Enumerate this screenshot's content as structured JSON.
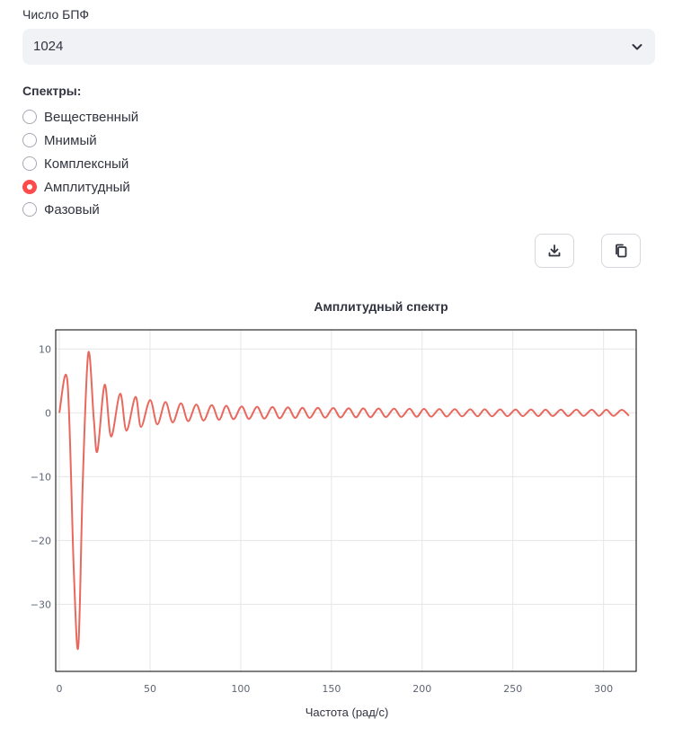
{
  "fft": {
    "label": "Число БПФ",
    "selected": "1024"
  },
  "spectra": {
    "label": "Спектры:",
    "options": [
      "Вещественный",
      "Мнимый",
      "Комплексный",
      "Амплитудный",
      "Фазовый"
    ],
    "selected_index": 3
  },
  "toolbar": {
    "download_icon": "download-icon",
    "copy_icon": "copy-icon"
  },
  "colors": {
    "accent": "#ff4b4b",
    "series": "#e8685e",
    "select_bg": "#f0f2f6"
  },
  "chart_data": {
    "type": "line",
    "title": "Амплитудный спектр",
    "xlabel": "Частота (рад/с)",
    "ylabel": "",
    "xlim": [
      -2,
      318
    ],
    "ylim": [
      -40.5,
      13
    ],
    "xticks": [
      0,
      50,
      100,
      150,
      200,
      250,
      300
    ],
    "yticks": [
      10,
      0,
      -10,
      -20,
      -30
    ],
    "grid": true,
    "series": [
      {
        "x": [
          0,
          4.5,
          8,
          10.5,
          13,
          16,
          19,
          21,
          25,
          28.5,
          33.5,
          37,
          42,
          45,
          50,
          54,
          58.5,
          62.5,
          67,
          71,
          75.5,
          79.5,
          84,
          88,
          92,
          96,
          100.5,
          104.5,
          109,
          113,
          117.5,
          121.5,
          126,
          130,
          134,
          138,
          142.5,
          146.5,
          151,
          155,
          159.5,
          163.5,
          167.5,
          171.5,
          176,
          180,
          184.5,
          188.5,
          193,
          197,
          201,
          205,
          209.5,
          213.5,
          218,
          222,
          226.5,
          230.5,
          234.5,
          238.5,
          243,
          247,
          251.5,
          255.5,
          260,
          264,
          268,
          272,
          276.5,
          280.5,
          285,
          289,
          293.5,
          297.5,
          301.5,
          305.5,
          310,
          314
        ],
        "y": [
          0,
          4.8,
          -25,
          -36.5,
          -10,
          9.4,
          -1,
          -6,
          4.4,
          -3.7,
          3,
          -2.8,
          2.5,
          -2.2,
          2,
          -1.8,
          1.7,
          -1.5,
          1.5,
          -1.3,
          1.3,
          -1.2,
          1.2,
          -1.1,
          1.1,
          -1,
          1,
          -0.95,
          0.95,
          -0.9,
          0.9,
          -0.85,
          0.85,
          -0.8,
          0.8,
          -0.78,
          0.78,
          -0.75,
          0.75,
          -0.72,
          0.72,
          -0.7,
          0.7,
          -0.68,
          0.68,
          -0.66,
          0.66,
          -0.64,
          0.64,
          -0.62,
          0.62,
          -0.6,
          0.6,
          -0.58,
          0.58,
          -0.56,
          0.56,
          -0.55,
          0.55,
          -0.54,
          0.54,
          -0.53,
          0.53,
          -0.52,
          0.52,
          -0.51,
          0.51,
          -0.5,
          0.5,
          -0.5,
          0.5,
          -0.49,
          0.49,
          -0.48,
          0.48,
          -0.47,
          0.47,
          -0.46
        ]
      }
    ]
  }
}
